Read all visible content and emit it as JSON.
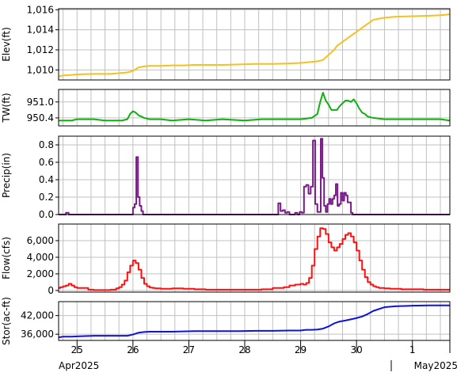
{
  "colors": {
    "elev": "#f5c020",
    "tw": "#10b010",
    "precip": "#7a1a8a",
    "flow": "#ff1010",
    "stor": "#1010e0",
    "grid": "#c0c0c0",
    "frame": "#000000"
  },
  "chart_data": [
    {
      "type": "line",
      "ylabel": "Elev(ft)",
      "ylim": [
        1009.0,
        1016.1
      ],
      "yticks": [
        1010,
        1012,
        1014,
        1016
      ],
      "ytick_labels": [
        "1,010",
        "1,012",
        "1,014",
        "1,016"
      ],
      "grid": true,
      "series": [
        {
          "color_key": "elev",
          "step": false,
          "x": [
            24.67,
            24.75,
            24.9,
            25.0,
            25.3,
            25.6,
            25.8,
            25.9,
            26.0,
            26.1,
            26.2,
            26.3,
            26.5,
            26.7,
            26.9,
            27.1,
            27.3,
            27.6,
            27.9,
            28.2,
            28.5,
            28.8,
            29.0,
            29.1,
            29.2,
            29.3,
            29.4,
            29.5,
            29.6,
            29.65,
            29.7,
            29.75,
            29.8,
            29.9,
            30.0,
            30.1,
            30.2,
            30.3,
            30.5,
            30.7,
            31.0,
            31.3,
            31.5,
            31.6,
            31.67
          ],
          "y": [
            1009.35,
            1009.45,
            1009.5,
            1009.55,
            1009.6,
            1009.6,
            1009.7,
            1009.75,
            1009.9,
            1010.25,
            1010.35,
            1010.4,
            1010.4,
            1010.45,
            1010.45,
            1010.5,
            1010.5,
            1010.5,
            1010.55,
            1010.6,
            1010.6,
            1010.65,
            1010.7,
            1010.75,
            1010.8,
            1010.85,
            1011.0,
            1011.5,
            1012.0,
            1012.4,
            1012.6,
            1012.8,
            1013.0,
            1013.4,
            1013.8,
            1014.2,
            1014.6,
            1015.0,
            1015.2,
            1015.3,
            1015.35,
            1015.4,
            1015.45,
            1015.5,
            1015.55
          ]
        }
      ]
    },
    {
      "type": "line",
      "ylabel": "TW(ft)",
      "ylim": [
        950.1,
        951.47
      ],
      "yticks": [
        950.4,
        951.0
      ],
      "ytick_labels": [
        "950.4",
        "951.0"
      ],
      "grid": true,
      "series": [
        {
          "color_key": "tw",
          "step": false,
          "x": [
            24.67,
            24.9,
            25.0,
            25.3,
            25.5,
            25.8,
            25.9,
            25.95,
            26.0,
            26.05,
            26.1,
            26.2,
            26.3,
            26.5,
            26.7,
            27.0,
            27.3,
            27.6,
            28.0,
            28.3,
            28.7,
            29.0,
            29.2,
            29.3,
            29.35,
            29.4,
            29.45,
            29.5,
            29.55,
            29.6,
            29.65,
            29.7,
            29.8,
            29.85,
            29.9,
            29.95,
            30.0,
            30.05,
            30.1,
            30.15,
            30.2,
            30.3,
            30.5,
            30.8,
            31.0,
            31.3,
            31.5,
            31.67
          ],
          "y": [
            950.3,
            950.3,
            950.35,
            950.35,
            950.3,
            950.3,
            950.35,
            950.55,
            950.65,
            950.6,
            950.5,
            950.4,
            950.35,
            950.35,
            950.3,
            950.35,
            950.3,
            950.35,
            950.3,
            950.35,
            950.35,
            950.35,
            950.4,
            950.55,
            951.0,
            951.35,
            951.05,
            950.9,
            950.7,
            950.7,
            950.7,
            950.85,
            951.05,
            951.05,
            951.0,
            951.1,
            950.95,
            950.75,
            950.6,
            950.55,
            950.45,
            950.4,
            950.35,
            950.35,
            950.35,
            950.35,
            950.35,
            950.3
          ]
        }
      ]
    },
    {
      "type": "line",
      "ylabel": "Precip(in)",
      "ylim": [
        0,
        0.9
      ],
      "yticks": [
        0.0,
        0.2,
        0.4,
        0.6,
        0.8
      ],
      "ytick_labels": [
        "0.0",
        "0.2",
        "0.4",
        "0.6",
        "0.8"
      ],
      "grid": true,
      "series": [
        {
          "color_key": "precip",
          "step": true,
          "x": [
            24.67,
            24.8,
            24.85,
            24.9,
            26.0,
            26.03,
            26.06,
            26.09,
            26.12,
            26.15,
            26.18,
            26.21,
            28.6,
            28.64,
            28.68,
            28.72,
            28.76,
            28.8,
            28.84,
            28.9,
            28.94,
            28.98,
            29.02,
            29.06,
            29.1,
            29.14,
            29.18,
            29.22,
            29.26,
            29.3,
            29.33,
            29.36,
            29.39,
            29.42,
            29.45,
            29.48,
            29.51,
            29.54,
            29.57,
            29.6,
            29.63,
            29.66,
            29.69,
            29.72,
            29.75,
            29.78,
            29.81,
            29.84,
            29.87,
            29.9,
            29.93,
            29.96,
            29.99,
            30.02,
            30.05,
            31.67
          ],
          "y": [
            0,
            0.02,
            0,
            0,
            0.08,
            0.12,
            0.66,
            0.2,
            0.1,
            0.04,
            0,
            0,
            0.13,
            0.04,
            0.05,
            0.02,
            0.03,
            0,
            0,
            0.02,
            0,
            0.03,
            0.02,
            0.32,
            0.34,
            0.24,
            0.32,
            0.85,
            0.12,
            0.03,
            0.03,
            0.87,
            0.42,
            0.1,
            0.03,
            0.12,
            0.18,
            0.12,
            0.18,
            0.22,
            0.35,
            0.1,
            0.12,
            0.25,
            0.16,
            0.25,
            0.22,
            0.14,
            0.14,
            0.02,
            0,
            0,
            0,
            0,
            0,
            0
          ]
        }
      ]
    },
    {
      "type": "line",
      "ylabel": "Flow(cfs)",
      "ylim": [
        -200,
        8000
      ],
      "yticks": [
        0,
        2000,
        4000,
        6000
      ],
      "ytick_labels": [
        "0",
        "2,000",
        "4,000",
        "6,000"
      ],
      "grid": true,
      "series": [
        {
          "color_key": "flow",
          "step": true,
          "x": [
            24.67,
            24.7,
            24.75,
            24.8,
            24.85,
            24.9,
            24.95,
            25.0,
            25.1,
            25.2,
            25.3,
            25.5,
            25.6,
            25.7,
            25.75,
            25.8,
            25.85,
            25.9,
            25.95,
            26.0,
            26.05,
            26.1,
            26.15,
            26.2,
            26.25,
            26.3,
            26.35,
            26.4,
            26.5,
            26.7,
            26.9,
            27.1,
            27.3,
            27.5,
            27.7,
            27.9,
            28.1,
            28.3,
            28.5,
            28.7,
            28.8,
            28.9,
            29.0,
            29.05,
            29.1,
            29.15,
            29.2,
            29.25,
            29.3,
            29.35,
            29.4,
            29.45,
            29.5,
            29.55,
            29.6,
            29.65,
            29.7,
            29.75,
            29.8,
            29.85,
            29.9,
            29.95,
            30.0,
            30.05,
            30.1,
            30.15,
            30.2,
            30.25,
            30.3,
            30.35,
            30.4,
            30.5,
            30.6,
            30.7,
            30.8,
            31.0,
            31.2,
            31.4,
            31.67
          ],
          "y": [
            300,
            400,
            500,
            600,
            800,
            600,
            400,
            300,
            300,
            100,
            50,
            50,
            100,
            250,
            400,
            700,
            1200,
            2200,
            3000,
            3600,
            3300,
            2500,
            1500,
            800,
            500,
            350,
            300,
            250,
            200,
            250,
            200,
            150,
            100,
            100,
            100,
            100,
            100,
            150,
            300,
            400,
            600,
            700,
            800,
            700,
            900,
            1500,
            3000,
            5000,
            6500,
            7500,
            7400,
            6800,
            5800,
            5200,
            4800,
            5200,
            5600,
            6200,
            6700,
            6900,
            6500,
            5800,
            4800,
            3600,
            2500,
            1600,
            1000,
            700,
            500,
            400,
            300,
            250,
            200,
            200,
            150,
            150,
            100,
            100,
            100
          ]
        }
      ]
    },
    {
      "type": "line",
      "ylabel": "Stor(ac-ft)",
      "ylim": [
        34000,
        46500
      ],
      "yticks": [
        36000,
        42000
      ],
      "ytick_labels": [
        "36,000",
        "42,000"
      ],
      "grid": true,
      "series": [
        {
          "color_key": "stor",
          "step": false,
          "x": [
            24.67,
            24.75,
            24.9,
            25.0,
            25.3,
            25.6,
            25.8,
            25.9,
            26.0,
            26.1,
            26.2,
            26.3,
            26.5,
            26.7,
            26.9,
            27.1,
            27.3,
            27.6,
            27.9,
            28.2,
            28.5,
            28.8,
            29.0,
            29.1,
            29.2,
            29.3,
            29.4,
            29.5,
            29.6,
            29.7,
            29.8,
            29.9,
            30.0,
            30.1,
            30.2,
            30.3,
            30.5,
            30.7,
            31.0,
            31.3,
            31.5,
            31.67
          ],
          "y": [
            35000,
            35200,
            35200,
            35300,
            35500,
            35500,
            35500,
            35500,
            35900,
            36500,
            36700,
            36800,
            36800,
            36800,
            36900,
            37000,
            37000,
            37000,
            37000,
            37100,
            37100,
            37200,
            37200,
            37400,
            37400,
            37500,
            37800,
            38500,
            39500,
            40100,
            40400,
            40800,
            41200,
            41700,
            42500,
            43500,
            44700,
            45000,
            45200,
            45300,
            45300,
            45300
          ]
        }
      ]
    }
  ],
  "x_axis": {
    "xlim": [
      24.67,
      31.67
    ],
    "day_labels": [
      {
        "x": 25.0,
        "text": "25"
      },
      {
        "x": 26.0,
        "text": "26"
      },
      {
        "x": 27.0,
        "text": "27"
      },
      {
        "x": 28.0,
        "text": "28"
      },
      {
        "x": 29.0,
        "text": "29"
      },
      {
        "x": 30.0,
        "text": "30"
      },
      {
        "x": 31.0,
        "text": "1"
      }
    ],
    "month_labels": [
      "Apr2025",
      "May2025"
    ]
  }
}
